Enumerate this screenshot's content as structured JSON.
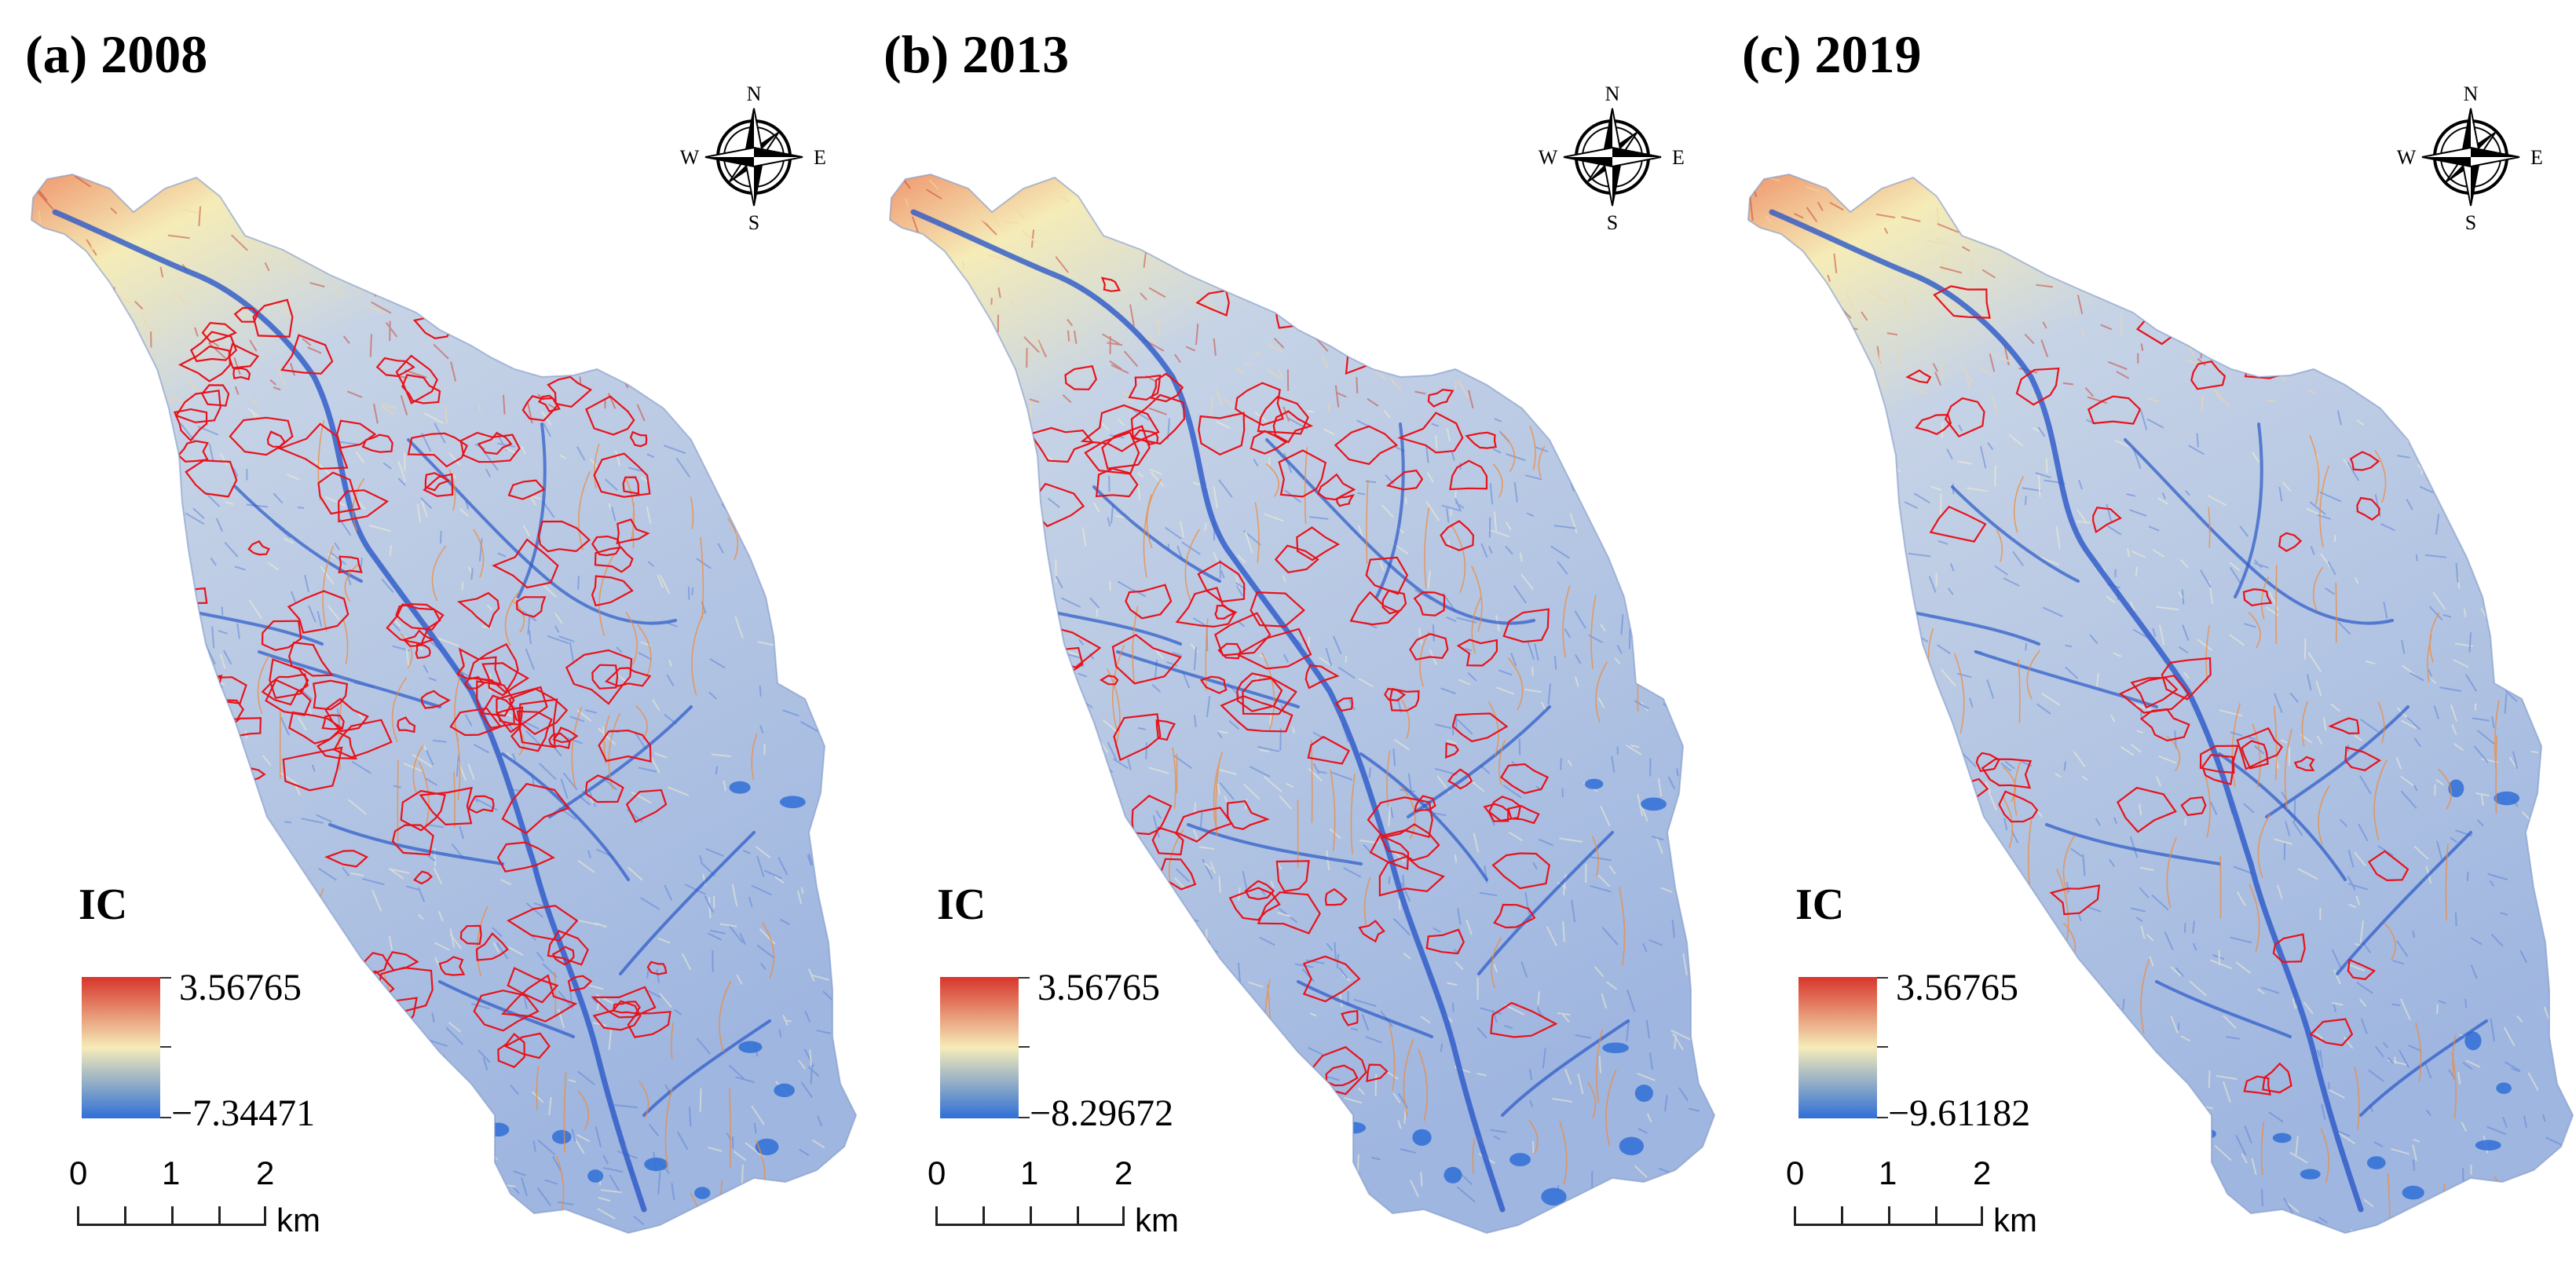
{
  "panels": [
    {
      "title": "(a) 2008",
      "legend": {
        "title": "IC",
        "max": "3.56765",
        "min": "−7.34471"
      },
      "gully_density": 1.0
    },
    {
      "title": "(b) 2013",
      "legend": {
        "title": "IC",
        "max": "3.56765",
        "min": "−8.29672"
      },
      "gully_density": 0.8
    },
    {
      "title": "(c) 2019",
      "legend": {
        "title": "IC",
        "max": "3.56765",
        "min": "−9.61182"
      },
      "gully_density": 0.35
    }
  ],
  "compass": {
    "n": "N",
    "s": "S",
    "e": "E",
    "w": "W"
  },
  "scalebar": {
    "ticks": [
      "0",
      "1",
      "2"
    ],
    "unit": "km"
  },
  "colors": {
    "ic_high": "#d7352b",
    "ic_mid": "#f5ecb8",
    "ic_low": "#2f6fd6",
    "gully_outline": "#e8121b",
    "channel": "#2a58c8"
  },
  "icons": [
    "compass-rose-icon"
  ]
}
